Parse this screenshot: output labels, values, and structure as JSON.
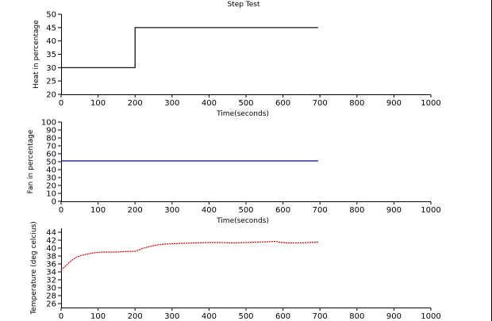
{
  "chart_data": [
    {
      "type": "line",
      "title": "Step Test",
      "xlabel": "Time(seconds)",
      "ylabel": "Heat in percentage",
      "xlim": [
        0,
        1000
      ],
      "ylim": [
        20,
        50
      ],
      "xticks": [
        0,
        100,
        200,
        300,
        400,
        500,
        600,
        700,
        800,
        900,
        1000
      ],
      "yticks": [
        20,
        25,
        30,
        35,
        40,
        45,
        50
      ],
      "grid": false,
      "series": [
        {
          "color": "#000000",
          "x": [
            0,
            200,
            200,
            695
          ],
          "y": [
            30,
            30,
            45,
            45
          ]
        }
      ]
    },
    {
      "type": "line",
      "title": "",
      "xlabel": "Time(seconds)",
      "ylabel": "Fan in percentage",
      "xlim": [
        0,
        1000
      ],
      "ylim": [
        0,
        100
      ],
      "xticks": [
        0,
        100,
        200,
        300,
        400,
        500,
        600,
        700,
        800,
        900,
        1000
      ],
      "yticks": [
        0,
        10,
        20,
        30,
        40,
        50,
        60,
        70,
        80,
        90,
        100
      ],
      "grid": false,
      "series": [
        {
          "color": "#00007f",
          "x": [
            0,
            695
          ],
          "y": [
            51,
            51
          ]
        }
      ]
    },
    {
      "type": "line",
      "title": "",
      "xlabel": "",
      "ylabel": "Temperature (deg celcius)",
      "xlim": [
        0,
        1000
      ],
      "ylim": [
        25,
        45
      ],
      "xticks": [
        0,
        100,
        200,
        300,
        400,
        500,
        600,
        700,
        800,
        900,
        1000
      ],
      "yticks": [
        26,
        28,
        30,
        32,
        34,
        36,
        38,
        40,
        42,
        44
      ],
      "grid": false,
      "series": [
        {
          "color": "#cc0000",
          "x": [
            0,
            10,
            20,
            30,
            40,
            50,
            70,
            90,
            110,
            130,
            150,
            170,
            200,
            210,
            220,
            240,
            260,
            280,
            300,
            330,
            360,
            400,
            430,
            460,
            500,
            530,
            560,
            580,
            590,
            610,
            640,
            670,
            695
          ],
          "y": [
            34.5,
            35.3,
            36.2,
            37.0,
            37.6,
            38.0,
            38.5,
            38.8,
            39.0,
            39.0,
            39.0,
            39.1,
            39.2,
            39.5,
            39.9,
            40.4,
            40.8,
            41.0,
            41.1,
            41.2,
            41.3,
            41.4,
            41.4,
            41.3,
            41.4,
            41.5,
            41.6,
            41.7,
            41.5,
            41.3,
            41.3,
            41.4,
            41.5
          ]
        }
      ]
    }
  ]
}
